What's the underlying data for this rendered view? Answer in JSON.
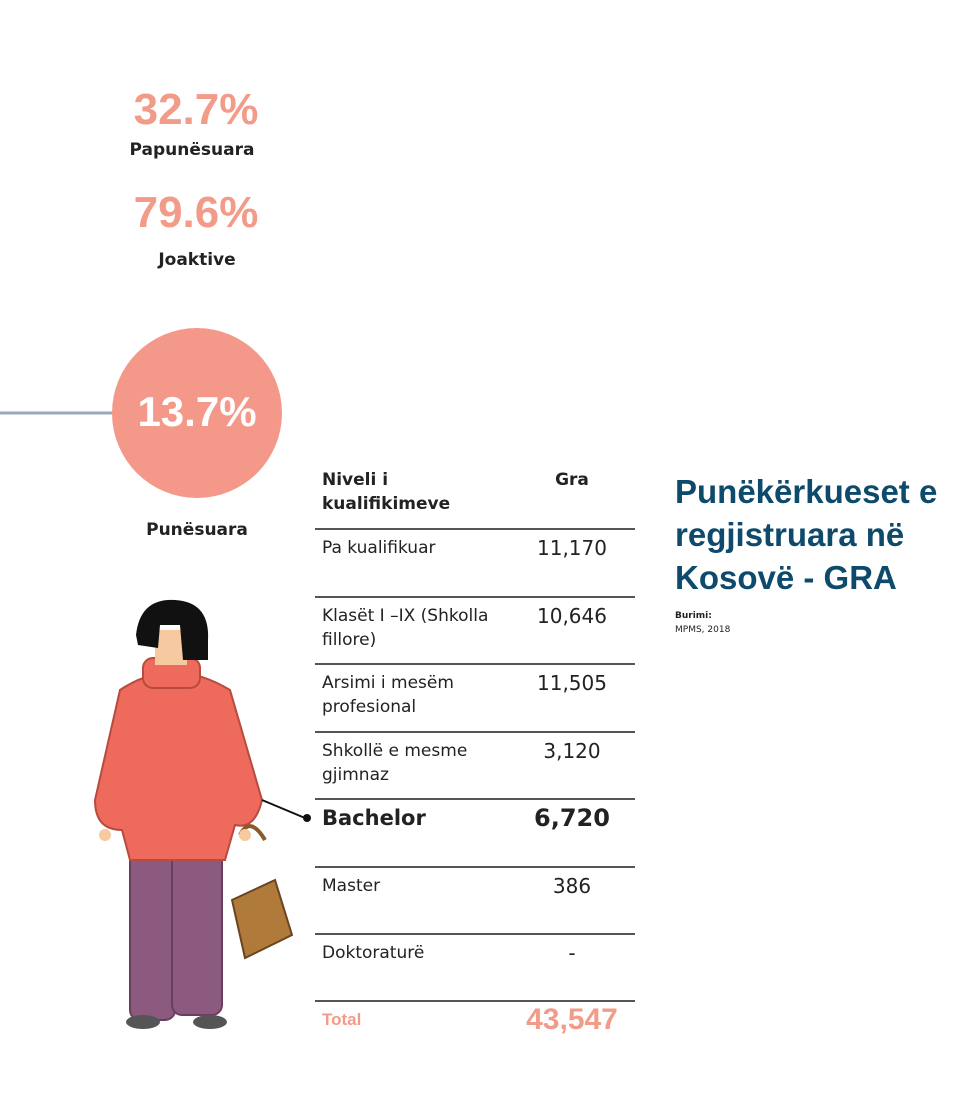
{
  "stats": [
    {
      "value": "32.7%",
      "label": "Papunësuara"
    },
    {
      "value": "79.6%",
      "label": "Joaktive"
    },
    {
      "value": "13.7%",
      "label": "Punësuara"
    }
  ],
  "table": {
    "header": [
      "Niveli i kualifikimeve",
      "Gra"
    ],
    "rows": [
      [
        "Pa kualifikuar",
        "11,170"
      ],
      [
        "Klasët I –IX (Shkolla fillore)",
        "10,646"
      ],
      [
        "Arsimi i mesëm profesional",
        "11,505"
      ],
      [
        "Shkollë e mesme gjimnaz",
        "3,120"
      ],
      [
        "Bachelor",
        "6,720"
      ],
      [
        "Master",
        "386"
      ],
      [
        "Doktoraturë",
        "-"
      ]
    ],
    "total": [
      "Total",
      "43,547"
    ]
  },
  "title": "Punëkërkueset e regjistruara në Kosovë - GRA",
  "source": {
    "label": "Burimi:",
    "text": "MPMS, 2018"
  }
}
